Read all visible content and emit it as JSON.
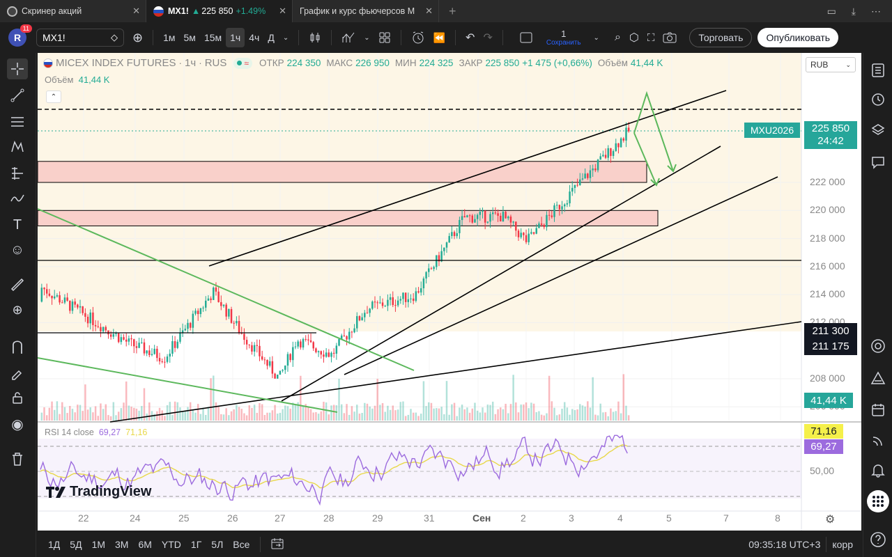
{
  "tabs": [
    {
      "title": "Скринер акций",
      "active": false
    },
    {
      "title": "MX1!",
      "price": "225 850",
      "change": "+1.49%",
      "active": true
    },
    {
      "title": "График и курс фьючерсов М",
      "active": false
    }
  ],
  "toolbar": {
    "avatar_letter": "R",
    "avatar_badge": "11",
    "symbol": "MX1!",
    "intervals": [
      "1м",
      "5м",
      "15м",
      "1ч",
      "4ч",
      "Д"
    ],
    "selected_interval": "1ч",
    "layout_count": "1",
    "layout_save": "Сохранить",
    "trade_button": "Торговать",
    "publish_button": "Опубликовать"
  },
  "legend": {
    "symbol": "MICEX INDEX FUTURES",
    "interval": "1ч",
    "exchange": "RUS",
    "open_label": "ОТКР",
    "open": "224 350",
    "high_label": "МАКС",
    "high": "226 950",
    "low_label": "МИН",
    "low": "224 325",
    "close_label": "ЗАКР",
    "close": "225 850",
    "change": "+1 475 (+0,66%)",
    "volume_label": "Объём",
    "volume": "41,44 K"
  },
  "volume_legend": {
    "label": "Объём",
    "value": "41,44 K"
  },
  "rsi_legend": {
    "label": "RSI 14 close",
    "rsi": "69,27",
    "ma": "71,16"
  },
  "currency": "RUB",
  "price_labels": {
    "ticker": "MXU2026",
    "last": "225 850",
    "countdown": "24:42",
    "level1": "211 300",
    "level2": "211 175",
    "volume": "41,44 K",
    "rsi_ma": "71,16",
    "rsi": "69,27",
    "rsi_mid": "50,00"
  },
  "price_axis": [
    "222 000",
    "220 000",
    "218 000",
    "216 000",
    "214 000",
    "212 000",
    "208 000",
    "206 000"
  ],
  "time_axis": [
    "22",
    "24",
    "25",
    "26",
    "27",
    "28",
    "29",
    "31",
    "Сен",
    "2",
    "3",
    "4",
    "5",
    "7",
    "8"
  ],
  "brand": "TradingView",
  "bottombar": {
    "ranges": [
      "1Д",
      "5Д",
      "1М",
      "3М",
      "6М",
      "YTD",
      "1Г",
      "5Л",
      "Все"
    ],
    "time": "09:35:18 UTC+3",
    "mode": "корр"
  },
  "colors": {
    "up": "#22ab94",
    "down": "#f23645",
    "accent": "#26a69a",
    "zone": "#f9d0ca",
    "rsi": "#9c6bde",
    "rsi_ma": "#e8d84a",
    "bg_hint": "#fdf6e6"
  },
  "chart_data": {
    "type": "candlestick",
    "symbol": "MICEX INDEX FUTURES",
    "interval": "1h",
    "time_labels": [
      "22",
      "24",
      "25",
      "26",
      "27",
      "28",
      "29",
      "31",
      "Сен",
      "2",
      "3",
      "4"
    ],
    "ylim": [
      205500,
      228000
    ],
    "ohlc_approx": [
      {
        "t": "22",
        "o": 213500,
        "h": 215200,
        "l": 212300,
        "c": 214500
      },
      {
        "t": "24",
        "o": 214500,
        "h": 216800,
        "l": 210000,
        "c": 210500
      },
      {
        "t": "25",
        "o": 210500,
        "h": 212000,
        "l": 208200,
        "c": 209500
      },
      {
        "t": "25b",
        "o": 209500,
        "h": 216000,
        "l": 208500,
        "c": 214200
      },
      {
        "t": "26",
        "o": 214200,
        "h": 214800,
        "l": 210800,
        "c": 211300
      },
      {
        "t": "27",
        "o": 211300,
        "h": 211800,
        "l": 206300,
        "c": 208000
      },
      {
        "t": "27b",
        "o": 208000,
        "h": 211500,
        "l": 207400,
        "c": 210800
      },
      {
        "t": "28",
        "o": 210800,
        "h": 212600,
        "l": 208200,
        "c": 209700
      },
      {
        "t": "29",
        "o": 209700,
        "h": 213800,
        "l": 209400,
        "c": 213000
      },
      {
        "t": "31",
        "o": 213000,
        "h": 215000,
        "l": 212400,
        "c": 214000
      },
      {
        "t": "31b",
        "o": 214000,
        "h": 220300,
        "l": 213500,
        "c": 219500
      },
      {
        "t": "Сен",
        "o": 219500,
        "h": 221800,
        "l": 217500,
        "c": 219600
      },
      {
        "t": "2",
        "o": 219600,
        "h": 220100,
        "l": 215700,
        "c": 217800
      },
      {
        "t": "3",
        "o": 217800,
        "h": 222900,
        "l": 217200,
        "c": 222700
      },
      {
        "t": "4",
        "o": 222700,
        "h": 226950,
        "l": 222300,
        "c": 225850
      }
    ],
    "rsi": {
      "period": 14,
      "value": 69.27,
      "ma": 71.16,
      "levels": [
        70,
        50,
        30
      ]
    },
    "last_price": 225850
  }
}
